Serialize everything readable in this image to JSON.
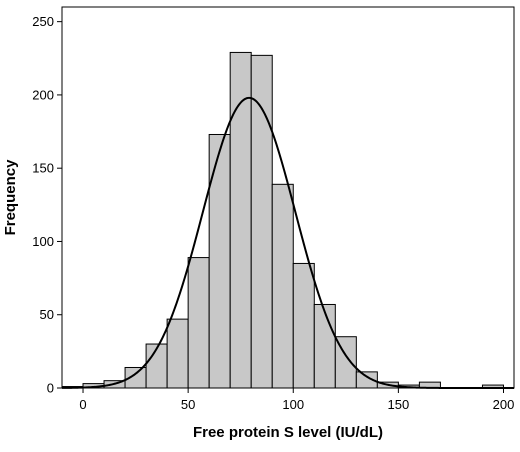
{
  "chart_data": {
    "type": "bar",
    "subtype": "histogram",
    "title": "",
    "xlabel": "Free protein S level (IU/dL)",
    "ylabel": "Frequency",
    "xlim": [
      -10,
      205
    ],
    "ylim": [
      0,
      260
    ],
    "x_ticks": [
      0,
      50,
      100,
      150,
      200
    ],
    "y_ticks": [
      0,
      50,
      100,
      150,
      200,
      250
    ],
    "bin_width": 10,
    "bins": [
      {
        "start": -10,
        "end": 0,
        "value": 1
      },
      {
        "start": 0,
        "end": 10,
        "value": 3
      },
      {
        "start": 10,
        "end": 20,
        "value": 5
      },
      {
        "start": 20,
        "end": 30,
        "value": 14
      },
      {
        "start": 30,
        "end": 40,
        "value": 30
      },
      {
        "start": 40,
        "end": 50,
        "value": 47
      },
      {
        "start": 50,
        "end": 60,
        "value": 89
      },
      {
        "start": 60,
        "end": 70,
        "value": 173
      },
      {
        "start": 70,
        "end": 80,
        "value": 229
      },
      {
        "start": 80,
        "end": 90,
        "value": 227
      },
      {
        "start": 90,
        "end": 100,
        "value": 139
      },
      {
        "start": 100,
        "end": 110,
        "value": 85
      },
      {
        "start": 110,
        "end": 120,
        "value": 57
      },
      {
        "start": 120,
        "end": 130,
        "value": 35
      },
      {
        "start": 130,
        "end": 140,
        "value": 11
      },
      {
        "start": 140,
        "end": 150,
        "value": 4
      },
      {
        "start": 150,
        "end": 160,
        "value": 2
      },
      {
        "start": 160,
        "end": 170,
        "value": 4
      },
      {
        "start": 170,
        "end": 180,
        "value": 0
      },
      {
        "start": 180,
        "end": 190,
        "value": 0
      },
      {
        "start": 190,
        "end": 200,
        "value": 2
      }
    ],
    "normal_curve": {
      "mean": 79,
      "sd": 22,
      "peak": 198
    },
    "colors": {
      "bar_fill": "#c8c8c8",
      "bar_stroke": "#000000",
      "curve": "#000000",
      "axes": "#000000",
      "background": "#ffffff"
    },
    "grid": false,
    "legend": "none"
  }
}
